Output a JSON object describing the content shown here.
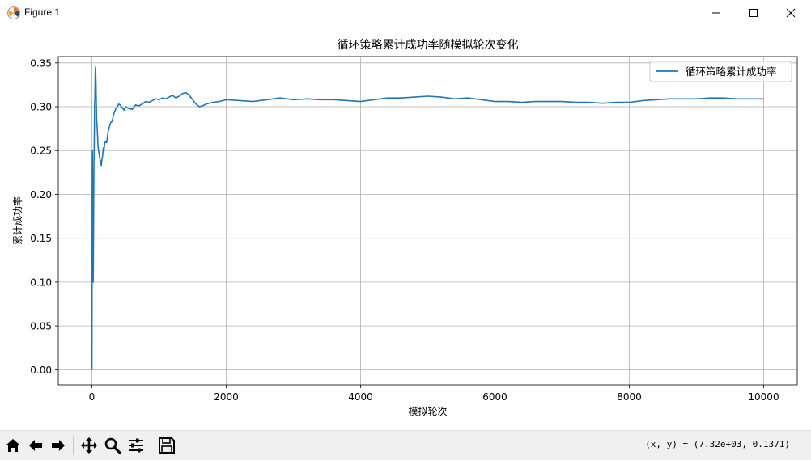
{
  "window": {
    "title": "Figure 1"
  },
  "toolbar": {
    "buttons": [
      "home-icon",
      "back-icon",
      "forward-icon",
      "pan-icon",
      "zoom-icon",
      "configure-subplots-icon",
      "save-icon"
    ],
    "coords_text": "(x, y) = (7.32e+03, 0.1371)"
  },
  "colors": {
    "line": "#1f77b4",
    "grid": "#b0b0b0"
  },
  "chart_data": {
    "type": "line",
    "title": "循环策略累计成功率随模拟轮次变化",
    "xlabel": "模拟轮次",
    "ylabel": "累计成功率",
    "xlim": [
      -500,
      10500
    ],
    "ylim": [
      -0.0172,
      0.3572
    ],
    "xticks": [
      0,
      2000,
      4000,
      6000,
      8000,
      10000
    ],
    "xtick_labels": [
      "0",
      "2000",
      "4000",
      "6000",
      "8000",
      "10000"
    ],
    "yticks": [
      0.0,
      0.05,
      0.1,
      0.15,
      0.2,
      0.25,
      0.3,
      0.35
    ],
    "ytick_labels": [
      "0.00",
      "0.05",
      "0.10",
      "0.15",
      "0.20",
      "0.25",
      "0.30",
      "0.35"
    ],
    "grid": true,
    "legend_position": "top-right",
    "series": [
      {
        "name": "循环策略累计成功率",
        "x": [
          1,
          5,
          8,
          12,
          15,
          20,
          25,
          30,
          35,
          40,
          45,
          50,
          55,
          60,
          65,
          70,
          80,
          90,
          100,
          110,
          120,
          130,
          140,
          150,
          160,
          170,
          180,
          190,
          200,
          220,
          240,
          260,
          280,
          300,
          320,
          340,
          360,
          380,
          400,
          420,
          440,
          460,
          480,
          500,
          550,
          600,
          650,
          700,
          750,
          800,
          850,
          900,
          950,
          1000,
          1050,
          1100,
          1150,
          1200,
          1250,
          1300,
          1350,
          1400,
          1450,
          1500,
          1550,
          1600,
          1650,
          1700,
          1800,
          1900,
          2000,
          2200,
          2400,
          2600,
          2800,
          3000,
          3200,
          3400,
          3600,
          3800,
          4000,
          4200,
          4400,
          4600,
          4800,
          5000,
          5200,
          5400,
          5600,
          5800,
          6000,
          6200,
          6400,
          6600,
          6800,
          7000,
          7200,
          7400,
          7600,
          7800,
          8000,
          8200,
          8400,
          8600,
          8800,
          9000,
          9200,
          9400,
          9600,
          9800,
          10000
        ],
        "y": [
          0.0,
          0.2,
          0.25,
          0.167,
          0.2,
          0.1,
          0.16,
          0.233,
          0.257,
          0.3,
          0.311,
          0.34,
          0.345,
          0.33,
          0.308,
          0.286,
          0.275,
          0.256,
          0.25,
          0.245,
          0.24,
          0.238,
          0.233,
          0.24,
          0.244,
          0.253,
          0.25,
          0.258,
          0.26,
          0.259,
          0.271,
          0.277,
          0.282,
          0.283,
          0.29,
          0.295,
          0.298,
          0.3,
          0.303,
          0.302,
          0.3,
          0.298,
          0.296,
          0.3,
          0.298,
          0.297,
          0.302,
          0.301,
          0.303,
          0.306,
          0.305,
          0.307,
          0.309,
          0.308,
          0.31,
          0.309,
          0.311,
          0.313,
          0.31,
          0.312,
          0.315,
          0.316,
          0.313,
          0.308,
          0.303,
          0.3,
          0.301,
          0.303,
          0.305,
          0.306,
          0.308,
          0.307,
          0.306,
          0.308,
          0.31,
          0.308,
          0.309,
          0.308,
          0.308,
          0.307,
          0.306,
          0.308,
          0.31,
          0.31,
          0.311,
          0.312,
          0.311,
          0.309,
          0.31,
          0.308,
          0.306,
          0.306,
          0.305,
          0.306,
          0.306,
          0.306,
          0.305,
          0.305,
          0.304,
          0.305,
          0.305,
          0.307,
          0.308,
          0.309,
          0.309,
          0.309,
          0.31,
          0.31,
          0.309,
          0.309,
          0.309
        ]
      }
    ]
  }
}
